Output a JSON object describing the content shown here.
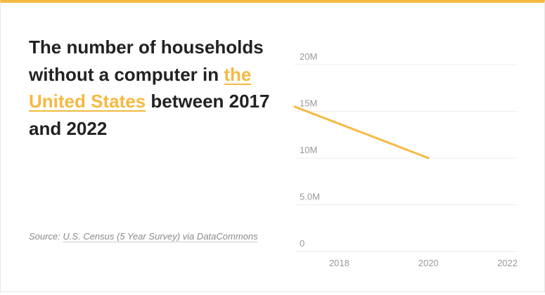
{
  "headline": {
    "before": "The number of households without a computer in ",
    "link": "the United States",
    "after": " between 2017 and 2022"
  },
  "source": {
    "prefix": "Source: ",
    "link": "U.S. Census (5 Year Survey) via DataCommons"
  },
  "colors": {
    "accent": "#f5b942",
    "text": "#222222",
    "muted": "#999999",
    "grid": "#eeeeee"
  },
  "chart_data": {
    "type": "line",
    "title": "",
    "xlabel": "",
    "ylabel": "",
    "x": [
      2017,
      2020
    ],
    "series": [
      {
        "values": [
          15500000,
          10000000
        ]
      }
    ],
    "xlim": [
      2017,
      2022
    ],
    "ylim": [
      0,
      20000000
    ],
    "y_ticks": [
      0,
      5000000,
      10000000,
      15000000,
      20000000
    ],
    "y_tick_labels": [
      "0",
      "5.0M",
      "10M",
      "15M",
      "20M"
    ],
    "x_ticks": [
      2018,
      2020,
      2022
    ],
    "x_tick_labels": [
      "2018",
      "2020",
      "2022"
    ],
    "grid": true,
    "legend": "none"
  }
}
